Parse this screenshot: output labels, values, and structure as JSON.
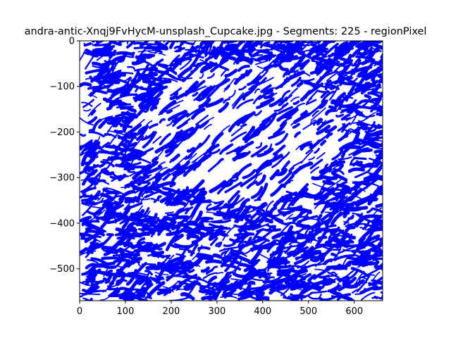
{
  "chart_data": {
    "type": "scatter",
    "title": "andra-antic-Xnqj9FvHycM-unsplash_Cupcake.jpg - Segments: 225 - regionPixel",
    "xlabel": "",
    "ylabel": "",
    "xlim": [
      0,
      662
    ],
    "ylim": [
      -570,
      0
    ],
    "xticks": [
      "0",
      "100",
      "200",
      "300",
      "400",
      "500",
      "600"
    ],
    "yticks": [
      "0",
      "−100",
      "−200",
      "−300",
      "−400",
      "−500"
    ],
    "xtick_values": [
      0,
      100,
      200,
      300,
      400,
      500,
      600
    ],
    "ytick_values": [
      0,
      -100,
      -200,
      -300,
      -400,
      -500
    ],
    "grid": false,
    "series": [
      {
        "color": "#0000ff",
        "marker": "stroke",
        "description_count": 225
      }
    ]
  }
}
